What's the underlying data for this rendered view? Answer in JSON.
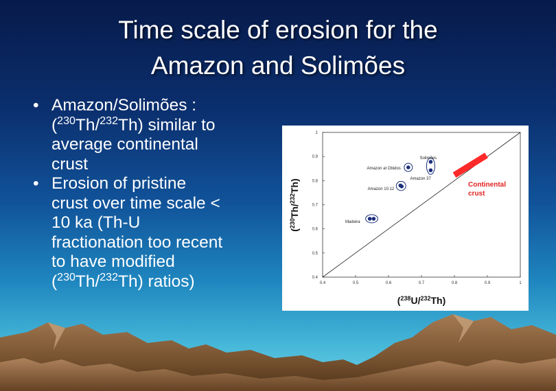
{
  "slide": {
    "title_line1": "Time scale of erosion for the",
    "title_line2": "Amazon and Solimões",
    "bullet_symbol": "•",
    "bullets": [
      {
        "l1": "Amazon/Solimões :",
        "l2_open": "(",
        "l2_sup1": "230",
        "l2_mid": "Th/",
        "l2_sup2": "232",
        "l2_end": "Th) similar to",
        "l3": "average continental",
        "l4": "crust"
      },
      {
        "l1": "Erosion of pristine",
        "l2": "crust over time scale <",
        "l3": "10 ka (Th-U",
        "l4": "fractionation too recent",
        "l5": "to have modified",
        "l6_open": "(",
        "l6_sup1": "230",
        "l6_mid": "Th/",
        "l6_sup2": "232",
        "l6_end": "Th) ratios)"
      }
    ],
    "colors": {
      "bg_top": "#071a4a",
      "bg_bottom": "#6fd0e6",
      "point": "#1a2e7a",
      "crust_band": "#ff2a2a",
      "crust_label": "#e02020"
    }
  },
  "chart_data": {
    "type": "scatter",
    "xlabel_sup1": "238",
    "xlabel_main": "U/",
    "xlabel_sup2": "232",
    "xlabel_end": "Th)",
    "xlabel_open": "(",
    "ylabel_open": "(",
    "ylabel_sup1": "230",
    "ylabel_main": "Th/",
    "ylabel_sup2": "232",
    "ylabel_end": "Th)",
    "xlim": [
      0.4,
      1
    ],
    "ylim": [
      0.4,
      1
    ],
    "xticks": [
      "0.4",
      "0.5",
      "0.6",
      "0.7",
      "0.8",
      "0.9",
      "1"
    ],
    "yticks": [
      "0.4",
      "0.5",
      "0.6",
      "0.7",
      "0.8",
      "0.9",
      "1"
    ],
    "equiline": true,
    "groups": [
      {
        "name": "Solimões",
        "points": [
          [
            0.728,
            0.878
          ],
          [
            0.728,
            0.843
          ]
        ]
      },
      {
        "name": "Amazon 37",
        "points": []
      },
      {
        "name": "Amazon at Obidos",
        "points": [
          [
            0.66,
            0.855
          ]
        ]
      },
      {
        "name": "Amazon 10.12",
        "points": [
          [
            0.636,
            0.78
          ],
          [
            0.64,
            0.776
          ]
        ]
      },
      {
        "name": "Madeira",
        "points": [
          [
            0.543,
            0.642
          ],
          [
            0.555,
            0.642
          ]
        ]
      }
    ],
    "crust": {
      "label_line1": "Continental",
      "label_line2": "crust",
      "from": [
        0.8,
        0.823
      ],
      "to": [
        0.897,
        0.905
      ]
    }
  }
}
